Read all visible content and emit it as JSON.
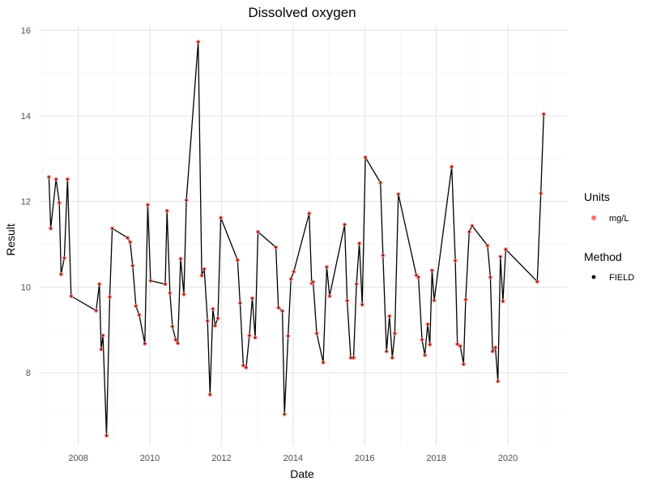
{
  "chart_data": {
    "type": "line",
    "title": "Dissolved oxygen",
    "xlabel": "Date",
    "ylabel": "Result",
    "x_ticks": [
      "2008",
      "2010",
      "2012",
      "2014",
      "2016",
      "2018",
      "2020"
    ],
    "y_ticks": [
      8,
      10,
      12,
      14,
      16
    ],
    "xlim": [
      2006.9,
      2021.65
    ],
    "ylim": [
      6.3,
      16.1
    ],
    "grid": true,
    "legend_position": "right",
    "legend": [
      {
        "title": "Units",
        "items": [
          {
            "label": "mg/L",
            "color": "#f8766d"
          }
        ]
      },
      {
        "title": "Method",
        "items": [
          {
            "label": "FIELD",
            "color": "#000000"
          }
        ]
      }
    ],
    "colors": {
      "line": "#000000",
      "point": "#f8766d"
    },
    "series": [
      {
        "points": [
          [
            2007.18,
            12.57
          ],
          [
            2007.23,
            11.37
          ],
          [
            2007.38,
            12.52
          ],
          [
            2007.47,
            11.97
          ],
          [
            2007.52,
            10.3
          ],
          [
            2007.61,
            10.68
          ],
          [
            2007.7,
            12.52
          ],
          [
            2007.8,
            9.79
          ],
          [
            2008.5,
            9.45
          ],
          [
            2008.59,
            10.07
          ],
          [
            2008.64,
            8.55
          ],
          [
            2008.69,
            8.87
          ],
          [
            2008.79,
            6.53
          ],
          [
            2008.88,
            9.77
          ],
          [
            2008.95,
            11.37
          ],
          [
            2009.38,
            11.15
          ],
          [
            2009.45,
            11.05
          ],
          [
            2009.52,
            10.5
          ],
          [
            2009.61,
            9.56
          ],
          [
            2009.7,
            9.35
          ],
          [
            2009.86,
            8.68
          ],
          [
            2009.94,
            11.92
          ],
          [
            2010.02,
            10.15
          ],
          [
            2010.43,
            10.07
          ],
          [
            2010.48,
            11.78
          ],
          [
            2010.56,
            9.86
          ],
          [
            2010.63,
            9.08
          ],
          [
            2010.72,
            8.77
          ],
          [
            2010.78,
            8.69
          ],
          [
            2010.86,
            10.66
          ],
          [
            2010.95,
            9.83
          ],
          [
            2011.02,
            12.03
          ],
          [
            2011.35,
            15.73
          ],
          [
            2011.45,
            10.27
          ],
          [
            2011.52,
            10.42
          ],
          [
            2011.61,
            9.21
          ],
          [
            2011.68,
            7.49
          ],
          [
            2011.76,
            9.49
          ],
          [
            2011.82,
            9.1
          ],
          [
            2011.9,
            9.27
          ],
          [
            2011.98,
            11.62
          ],
          [
            2012.45,
            10.63
          ],
          [
            2012.52,
            9.63
          ],
          [
            2012.61,
            8.17
          ],
          [
            2012.69,
            8.12
          ],
          [
            2012.78,
            8.87
          ],
          [
            2012.86,
            9.74
          ],
          [
            2012.94,
            8.82
          ],
          [
            2013.02,
            11.29
          ],
          [
            2013.52,
            10.93
          ],
          [
            2013.59,
            9.52
          ],
          [
            2013.7,
            9.44
          ],
          [
            2013.76,
            7.03
          ],
          [
            2013.86,
            8.86
          ],
          [
            2013.94,
            10.19
          ],
          [
            2014.02,
            10.36
          ],
          [
            2014.45,
            11.72
          ],
          [
            2014.52,
            10.09
          ],
          [
            2014.56,
            10.12
          ],
          [
            2014.66,
            8.92
          ],
          [
            2014.84,
            8.24
          ],
          [
            2014.94,
            10.47
          ],
          [
            2015.02,
            9.79
          ],
          [
            2015.44,
            11.46
          ],
          [
            2015.51,
            9.68
          ],
          [
            2015.61,
            8.35
          ],
          [
            2015.69,
            8.35
          ],
          [
            2015.77,
            10.07
          ],
          [
            2015.85,
            11.02
          ],
          [
            2015.93,
            9.59
          ],
          [
            2016.02,
            13.03
          ],
          [
            2016.44,
            12.44
          ],
          [
            2016.51,
            10.74
          ],
          [
            2016.61,
            8.5
          ],
          [
            2016.69,
            9.32
          ],
          [
            2016.77,
            8.35
          ],
          [
            2016.84,
            8.92
          ],
          [
            2016.94,
            12.17
          ],
          [
            2017.44,
            10.28
          ],
          [
            2017.5,
            10.23
          ],
          [
            2017.6,
            8.77
          ],
          [
            2017.68,
            8.41
          ],
          [
            2017.76,
            9.13
          ],
          [
            2017.82,
            8.66
          ],
          [
            2017.88,
            10.39
          ],
          [
            2017.94,
            9.69
          ],
          [
            2018.43,
            12.81
          ],
          [
            2018.53,
            10.62
          ],
          [
            2018.59,
            8.67
          ],
          [
            2018.67,
            8.62
          ],
          [
            2018.76,
            8.2
          ],
          [
            2018.82,
            9.71
          ],
          [
            2018.92,
            11.29
          ],
          [
            2019.0,
            11.43
          ],
          [
            2019.43,
            10.97
          ],
          [
            2019.51,
            10.23
          ],
          [
            2019.57,
            8.5
          ],
          [
            2019.65,
            8.59
          ],
          [
            2019.72,
            7.8
          ],
          [
            2019.79,
            10.71
          ],
          [
            2019.86,
            9.67
          ],
          [
            2019.94,
            10.88
          ],
          [
            2020.82,
            10.13
          ],
          [
            2020.92,
            12.19
          ],
          [
            2021.0,
            14.04
          ]
        ]
      }
    ]
  }
}
